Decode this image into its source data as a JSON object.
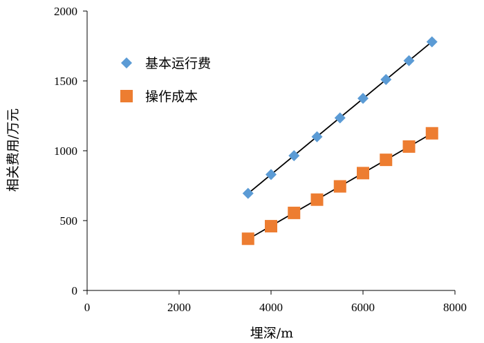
{
  "chart_data": {
    "type": "scatter",
    "xlabel": "埋深/m",
    "ylabel": "相关费用/万元",
    "xlim": [
      0,
      8000
    ],
    "ylim": [
      0,
      2000
    ],
    "x_ticks": [
      0,
      2000,
      4000,
      6000,
      8000
    ],
    "y_ticks": [
      0,
      500,
      1000,
      1500,
      2000
    ],
    "x_tick_labels": [
      "0",
      "2000",
      "4000",
      "6000",
      "8000"
    ],
    "y_tick_labels": [
      "0",
      "500",
      "1000",
      "1500",
      "2000"
    ],
    "grid": false,
    "legend_position": "top-left",
    "series": [
      {
        "name": "基本运行费",
        "marker": "diamond",
        "color": "#5b9bd5",
        "trendline": true,
        "x": [
          3500,
          4000,
          4500,
          5000,
          5500,
          6000,
          6500,
          7000,
          7500
        ],
        "y": [
          695,
          830,
          965,
          1100,
          1235,
          1375,
          1510,
          1645,
          1780
        ]
      },
      {
        "name": "操作成本",
        "marker": "square",
        "color": "#ed7d31",
        "trendline": true,
        "x": [
          3500,
          4000,
          4500,
          5000,
          5500,
          6000,
          6500,
          7000,
          7500
        ],
        "y": [
          370,
          460,
          555,
          650,
          745,
          840,
          935,
          1030,
          1125
        ]
      }
    ]
  }
}
